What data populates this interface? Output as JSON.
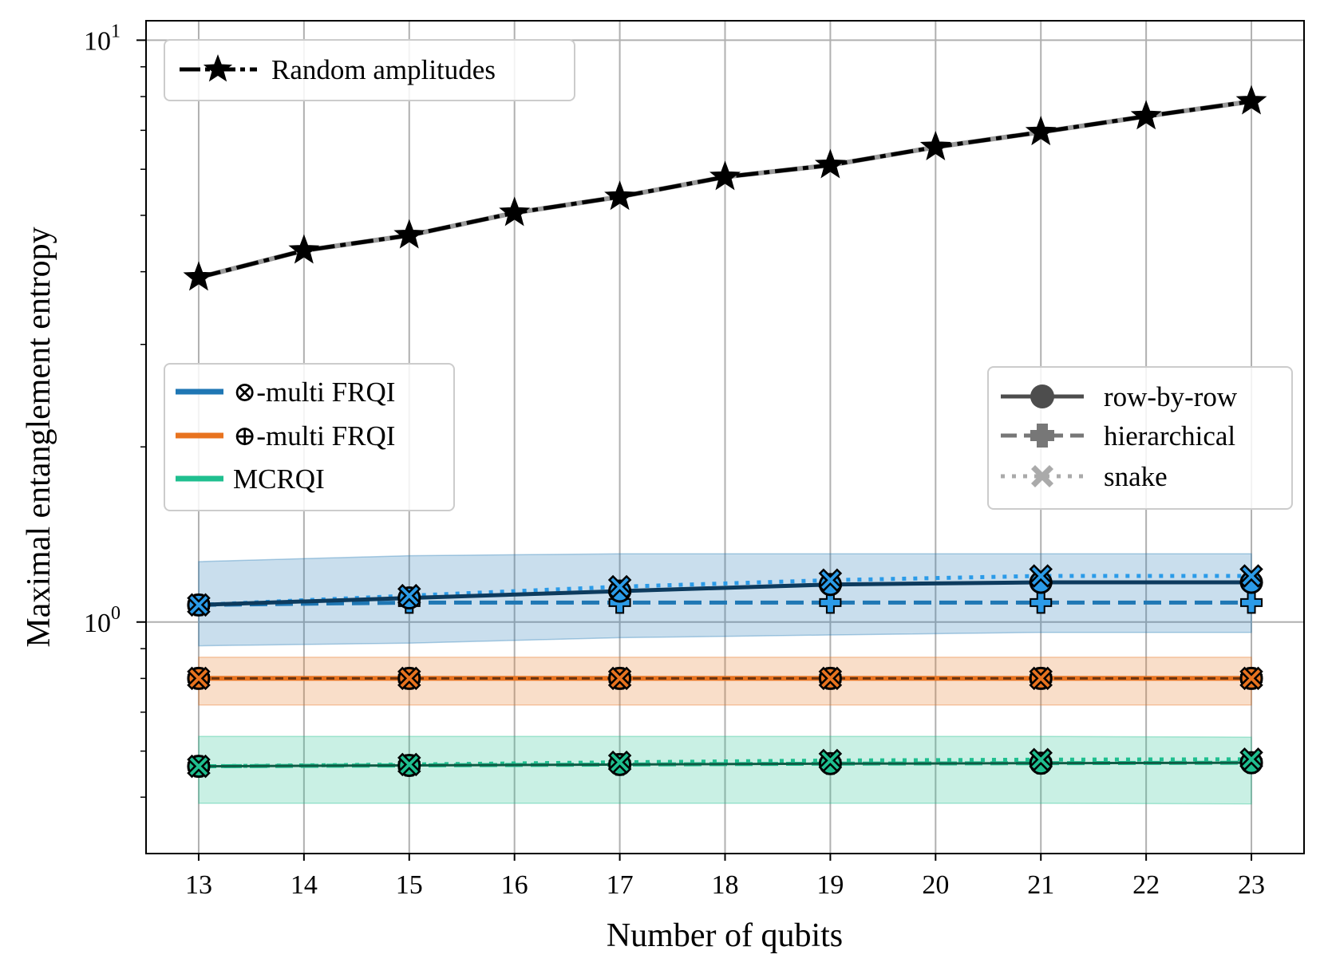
{
  "chart_data": {
    "type": "line",
    "title": "",
    "xlabel": "Number of qubits",
    "ylabel": "Maximal entanglement entropy",
    "yscale": "log",
    "xlim": [
      12.5,
      23.5
    ],
    "ylim": [
      0.4,
      10.8
    ],
    "xticks": [
      13,
      14,
      15,
      16,
      17,
      18,
      19,
      20,
      21,
      22,
      23
    ],
    "yticks": [
      {
        "value": 1,
        "base": "10",
        "exp": "0"
      },
      {
        "value": 10,
        "base": "10",
        "exp": "1"
      }
    ],
    "grid": true,
    "colors": {
      "otimes_frqi": "#1f77b4",
      "otimes_frqi_light": "#2b9be8",
      "otimes_frqi_dark": "#0d3b5e",
      "oplus_frqi": "#e8731f",
      "oplus_frqi_dark": "#6b3410",
      "mcrqi": "#1fbf8f",
      "mcrqi_dark": "#0f5c45",
      "random": "#000000"
    },
    "series": [
      {
        "name": "Random amplitudes",
        "key": "random",
        "ordering": "row-by-row",
        "x": [
          13,
          14,
          15,
          16,
          17,
          18,
          19,
          20,
          21,
          22,
          23
        ],
        "values": [
          3.91,
          4.35,
          4.62,
          5.05,
          5.38,
          5.82,
          6.1,
          6.55,
          6.95,
          7.4,
          7.85
        ]
      },
      {
        "name": "⊗-multi FRQI",
        "key": "otimes_frqi",
        "ordering": "row-by-row",
        "x": [
          13,
          15,
          17,
          19,
          21,
          23
        ],
        "values": [
          1.07,
          1.1,
          1.13,
          1.16,
          1.17,
          1.17
        ],
        "band": {
          "lower": [
            0.91,
            0.92,
            0.94,
            0.95,
            0.96,
            0.96
          ],
          "upper": [
            1.27,
            1.3,
            1.31,
            1.31,
            1.31,
            1.31
          ]
        }
      },
      {
        "name": "⊗-multi FRQI",
        "key": "otimes_frqi",
        "ordering": "hierarchical",
        "x": [
          13,
          15,
          17,
          19,
          21,
          23
        ],
        "values": [
          1.07,
          1.08,
          1.08,
          1.08,
          1.08,
          1.08
        ]
      },
      {
        "name": "⊗-multi FRQI",
        "key": "otimes_frqi",
        "ordering": "snake",
        "x": [
          13,
          15,
          17,
          19,
          21,
          23
        ],
        "values": [
          1.07,
          1.11,
          1.15,
          1.18,
          1.2,
          1.2
        ]
      },
      {
        "name": "⊕-multi FRQI",
        "key": "oplus_frqi",
        "ordering": "row-by-row",
        "x": [
          13,
          15,
          17,
          19,
          21,
          23
        ],
        "values": [
          0.8,
          0.8,
          0.8,
          0.8,
          0.8,
          0.8
        ],
        "band": {
          "lower": [
            0.72,
            0.72,
            0.72,
            0.72,
            0.72,
            0.72
          ],
          "upper": [
            0.87,
            0.87,
            0.87,
            0.87,
            0.87,
            0.87
          ]
        }
      },
      {
        "name": "MCRQI",
        "key": "mcrqi",
        "ordering": "row-by-row",
        "x": [
          13,
          15,
          17,
          19,
          21,
          23
        ],
        "values": [
          0.565,
          0.567,
          0.569,
          0.571,
          0.572,
          0.573
        ],
        "band": {
          "lower": [
            0.488,
            0.488,
            0.488,
            0.488,
            0.488,
            0.487
          ],
          "upper": [
            0.636,
            0.636,
            0.636,
            0.636,
            0.636,
            0.634
          ]
        }
      },
      {
        "name": "MCRQI",
        "key": "mcrqi",
        "ordering": "snake",
        "x": [
          13,
          15,
          17,
          19,
          21,
          23
        ],
        "values": [
          0.565,
          0.569,
          0.574,
          0.578,
          0.58,
          0.581
        ]
      }
    ],
    "legend_random": {
      "label": "Random amplitudes",
      "position": "top-left"
    },
    "legend_methods": {
      "position": "center-left",
      "entries": [
        {
          "label": "⊗-multi FRQI",
          "color": "#1f77b4"
        },
        {
          "label": "⊕-multi FRQI",
          "color": "#e8731f"
        },
        {
          "label": "MCRQI",
          "color": "#1fbf8f"
        }
      ]
    },
    "legend_orderings": {
      "position": "center-right",
      "entries": [
        {
          "label": "row-by-row",
          "style": "solid",
          "marker": "circle",
          "color": "#4d4d4d"
        },
        {
          "label": "hierarchical",
          "style": "dashed",
          "marker": "plus",
          "color": "#777777"
        },
        {
          "label": "snake",
          "style": "dotted",
          "marker": "x",
          "color": "#aaaaaa"
        }
      ]
    }
  }
}
